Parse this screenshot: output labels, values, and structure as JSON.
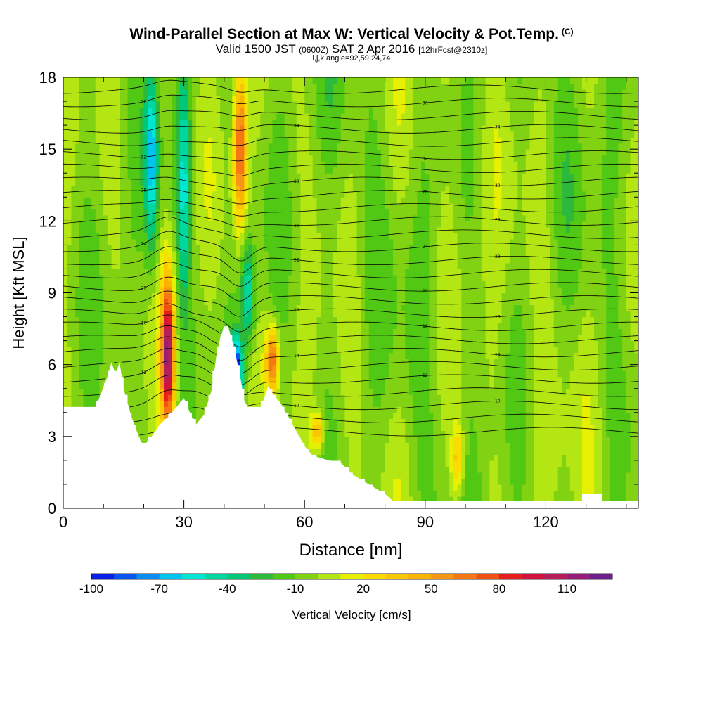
{
  "title": {
    "main": "Wind-Parallel Section at Max W: Vertical Velocity & Pot.Temp.",
    "copyright": "(C)"
  },
  "subtitle": {
    "valid": "Valid 1500 JST",
    "utc": "(0600Z)",
    "date": "SAT 2 Apr 2016",
    "forecast": "[12hrFcst@2310z]"
  },
  "indices": "i,j,k,angle=92,59,24,74",
  "chart_data": {
    "type": "heatmap",
    "title": "Wind-Parallel Section at Max W: Vertical Velocity & Pot.Temp.",
    "xlabel": "Distance [nm]",
    "ylabel": "Height [Kft MSL]",
    "xlim": [
      0,
      143
    ],
    "ylim": [
      0,
      18
    ],
    "x_ticks": [
      "0",
      "30",
      "60",
      "90",
      "120"
    ],
    "y_ticks": [
      "0",
      "3",
      "6",
      "9",
      "12",
      "15",
      "18"
    ],
    "colorbar": {
      "label": "Vertical Velocity [cm/s]",
      "tick_labels": [
        "-100",
        "-70",
        "-40",
        "-10",
        "20",
        "50",
        "80",
        "110"
      ],
      "min": -100,
      "max": 125,
      "step": 10,
      "colors": [
        "#0a20e6",
        "#0a55f0",
        "#0a8cf0",
        "#00c3f0",
        "#00e6d2",
        "#00d7a0",
        "#00c878",
        "#2db93c",
        "#50c814",
        "#82d214",
        "#b4e614",
        "#e6f000",
        "#fadc00",
        "#fac800",
        "#fab400",
        "#f59614",
        "#f57814",
        "#f05014",
        "#e61e1e",
        "#d2143c",
        "#b41e5a",
        "#961e78",
        "#6e1e8c"
      ]
    },
    "contour_labels": [
      "36",
      "34",
      "32",
      "30",
      "28",
      "26",
      "24",
      "22",
      "20",
      "18",
      "16",
      "14",
      "12",
      "10"
    ],
    "vertical_velocity_features": [
      {
        "x": 26,
        "z_range": [
          3.5,
          9.5
        ],
        "w": 115
      },
      {
        "x": 44,
        "z_range": [
          12.0,
          18.0
        ],
        "w": 80
      },
      {
        "x": 52,
        "z_range": [
          5.0,
          7.5
        ],
        "w": 75
      },
      {
        "x": 22,
        "z_range": [
          11.0,
          18.0
        ],
        "w": -60
      },
      {
        "x": 30,
        "z_range": [
          9.0,
          18.0
        ],
        "w": -45
      },
      {
        "x": 43,
        "z_range": [
          4.5,
          7.0
        ],
        "w": -100
      },
      {
        "x": 46,
        "z_range": [
          7.0,
          11.0
        ],
        "w": -50
      },
      {
        "x": 63,
        "z_range": [
          2.5,
          4.0
        ],
        "w": 45
      },
      {
        "x": 98,
        "z_range": [
          0.5,
          3.5
        ],
        "w": 40
      }
    ],
    "terrain": [
      {
        "x": 0,
        "z": 4.2
      },
      {
        "x": 8,
        "z": 4.2
      },
      {
        "x": 11,
        "z": 5.5
      },
      {
        "x": 12,
        "z": 6.1
      },
      {
        "x": 13,
        "z": 5.6
      },
      {
        "x": 14,
        "z": 6.1
      },
      {
        "x": 15,
        "z": 5.0
      },
      {
        "x": 17,
        "z": 3.8
      },
      {
        "x": 19,
        "z": 2.9
      },
      {
        "x": 20,
        "z": 2.6
      },
      {
        "x": 22,
        "z": 3.0
      },
      {
        "x": 24,
        "z": 3.5
      },
      {
        "x": 26,
        "z": 3.8
      },
      {
        "x": 28,
        "z": 4.2
      },
      {
        "x": 30,
        "z": 4.6
      },
      {
        "x": 32,
        "z": 3.8
      },
      {
        "x": 33,
        "z": 3.5
      },
      {
        "x": 35,
        "z": 3.9
      },
      {
        "x": 37,
        "z": 5.0
      },
      {
        "x": 38,
        "z": 6.3
      },
      {
        "x": 39,
        "z": 7.1
      },
      {
        "x": 40,
        "z": 7.6
      },
      {
        "x": 41,
        "z": 7.6
      },
      {
        "x": 42,
        "z": 7.0
      },
      {
        "x": 43,
        "z": 6.3
      },
      {
        "x": 44,
        "z": 5.5
      },
      {
        "x": 45,
        "z": 4.5
      },
      {
        "x": 46,
        "z": 4.2
      },
      {
        "x": 49,
        "z": 4.2
      },
      {
        "x": 50,
        "z": 4.6
      },
      {
        "x": 51,
        "z": 5.1
      },
      {
        "x": 52,
        "z": 4.8
      },
      {
        "x": 54,
        "z": 4.4
      },
      {
        "x": 56,
        "z": 3.8
      },
      {
        "x": 58,
        "z": 3.2
      },
      {
        "x": 60,
        "z": 2.6
      },
      {
        "x": 62,
        "z": 2.2
      },
      {
        "x": 66,
        "z": 2.0
      },
      {
        "x": 69,
        "z": 1.9
      },
      {
        "x": 72,
        "z": 1.4
      },
      {
        "x": 75,
        "z": 1.1
      },
      {
        "x": 78,
        "z": 0.8
      },
      {
        "x": 80,
        "z": 0.6
      },
      {
        "x": 82,
        "z": 0.3
      },
      {
        "x": 90,
        "z": 0.3
      },
      {
        "x": 129,
        "z": 0.3
      },
      {
        "x": 129,
        "z": 0.6
      },
      {
        "x": 134,
        "z": 0.6
      },
      {
        "x": 134,
        "z": 0.3
      },
      {
        "x": 143,
        "z": 0.3
      }
    ]
  }
}
